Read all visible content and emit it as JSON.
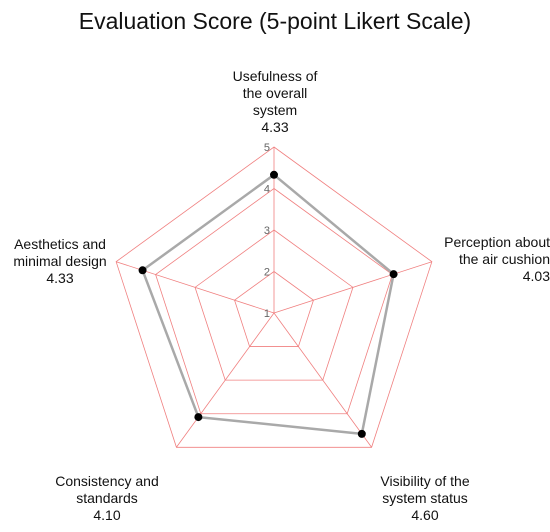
{
  "chart_data": {
    "type": "radar",
    "title": "Evaluation Score (5-point Likert Scale)",
    "rmin": 1,
    "rmax": 5,
    "ticks": [
      "1",
      "2",
      "3",
      "4",
      "5"
    ],
    "tick_values": [
      1,
      2,
      3,
      4,
      5
    ],
    "axes": [
      {
        "label_lines": [
          "Usefulness of",
          "the overall",
          "system"
        ],
        "value_text": "4.33",
        "value": 4.33
      },
      {
        "label_lines": [
          "Perception about",
          "the air cushion"
        ],
        "value_text": "4.03",
        "value": 4.03
      },
      {
        "label_lines": [
          "Visibility of the",
          "system status"
        ],
        "value_text": "4.60",
        "value": 4.6
      },
      {
        "label_lines": [
          "Consistency and",
          "standards"
        ],
        "value_text": "4.10",
        "value": 4.1
      },
      {
        "label_lines": [
          "Aesthetics and",
          "minimal design"
        ],
        "value_text": "4.33",
        "value": 4.33
      }
    ],
    "grid": true,
    "colors": {
      "grid": "#f08080",
      "series_line": "#a9a9a9",
      "points": "#000000",
      "tick_text": "#666666"
    }
  }
}
